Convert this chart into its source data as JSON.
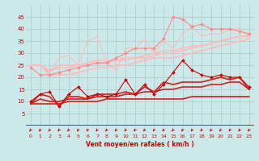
{
  "background_color": "#cce8e8",
  "grid_color": "#aacccc",
  "xlabel": "Vent moyen/en rafales ( km/h )",
  "xlabel_color": "#cc0000",
  "tick_color": "#cc0000",
  "xlim": [
    -0.5,
    23.5
  ],
  "ylim": [
    0,
    50
  ],
  "yticks": [
    5,
    10,
    15,
    20,
    25,
    30,
    35,
    40,
    45
  ],
  "xticks": [
    0,
    1,
    2,
    3,
    4,
    5,
    6,
    7,
    8,
    9,
    10,
    11,
    12,
    13,
    14,
    15,
    16,
    17,
    18,
    19,
    20,
    21,
    22,
    23
  ],
  "lines": [
    {
      "x": [
        0,
        1,
        2,
        3,
        4,
        5,
        6,
        7,
        8,
        9,
        10,
        11,
        12,
        13,
        14,
        15,
        16,
        17,
        18,
        19,
        20,
        21,
        22,
        23
      ],
      "y": [
        25,
        25,
        22,
        28,
        29,
        25,
        35,
        37,
        26,
        23,
        32,
        32,
        36,
        30,
        35,
        32,
        38,
        41,
        37,
        38,
        38,
        40,
        40,
        37
      ],
      "color": "#ffbbbb",
      "lw": 0.8,
      "marker": null,
      "ms": 0,
      "zorder": 2
    },
    {
      "x": [
        0,
        1,
        2,
        3,
        4,
        5,
        6,
        7,
        8,
        9,
        10,
        11,
        12,
        13,
        14,
        15,
        16,
        17,
        18,
        19,
        20,
        21,
        22,
        23
      ],
      "y": [
        25,
        25,
        22,
        25,
        25,
        25,
        26,
        27,
        27,
        27,
        28,
        28,
        29,
        30,
        31,
        31,
        32,
        33,
        33,
        34,
        35,
        36,
        37,
        37
      ],
      "color": "#ffbbbb",
      "lw": 1.2,
      "marker": null,
      "ms": 0,
      "zorder": 2
    },
    {
      "x": [
        0,
        1,
        2,
        3,
        4,
        5,
        6,
        7,
        8,
        9,
        10,
        11,
        12,
        13,
        14,
        15,
        16,
        17,
        18,
        19,
        20,
        21,
        22,
        23
      ],
      "y": [
        25,
        25,
        23,
        24,
        24,
        25,
        25,
        26,
        26,
        27,
        27,
        28,
        28,
        29,
        30,
        30,
        31,
        32,
        33,
        34,
        35,
        36,
        37,
        37
      ],
      "color": "#ffbbbb",
      "lw": 1.2,
      "marker": null,
      "ms": 0,
      "zorder": 2
    },
    {
      "x": [
        0,
        1,
        2,
        3,
        4,
        5,
        6,
        7,
        8,
        9,
        10,
        11,
        12,
        13,
        14,
        15,
        16,
        17,
        18,
        19,
        20,
        21,
        22,
        23
      ],
      "y": [
        25,
        25,
        21,
        21,
        21,
        22,
        23,
        24,
        24,
        25,
        25,
        26,
        27,
        28,
        28,
        28,
        29,
        30,
        31,
        32,
        33,
        34,
        35,
        36
      ],
      "color": "#ffbbbb",
      "lw": 1.2,
      "marker": null,
      "ms": 0,
      "zorder": 2
    },
    {
      "x": [
        0,
        1,
        2,
        3,
        4,
        5,
        6,
        7,
        8,
        9,
        10,
        11,
        12,
        13,
        14,
        15,
        16,
        17,
        18,
        19,
        20,
        21,
        22,
        23
      ],
      "y": [
        24,
        21,
        21,
        22,
        23,
        24,
        25,
        26,
        26,
        28,
        30,
        32,
        32,
        32,
        36,
        45,
        44,
        41,
        42,
        40,
        40,
        40,
        39,
        38
      ],
      "color": "#ff8888",
      "lw": 0.8,
      "marker": "D",
      "ms": 2,
      "zorder": 3
    },
    {
      "x": [
        0,
        1,
        2,
        3,
        4,
        5,
        6,
        7,
        8,
        9,
        10,
        11,
        12,
        13,
        14,
        15,
        16,
        17,
        18,
        19,
        20,
        21,
        22,
        23
      ],
      "y": [
        10,
        13,
        14,
        8,
        13,
        16,
        12,
        13,
        12,
        13,
        19,
        13,
        17,
        13,
        17,
        22,
        27,
        23,
        21,
        20,
        21,
        20,
        20,
        16
      ],
      "color": "#cc0000",
      "lw": 0.8,
      "marker": "D",
      "ms": 2,
      "zorder": 3
    },
    {
      "x": [
        0,
        1,
        2,
        3,
        4,
        5,
        6,
        7,
        8,
        9,
        10,
        11,
        12,
        13,
        14,
        15,
        16,
        17,
        18,
        19,
        20,
        21,
        22,
        23
      ],
      "y": [
        9,
        13,
        12,
        8,
        12,
        12,
        11,
        13,
        13,
        13,
        14,
        13,
        16,
        14,
        18,
        17,
        18,
        18,
        18,
        19,
        20,
        19,
        20,
        15
      ],
      "color": "#cc2222",
      "lw": 1.2,
      "marker": null,
      "ms": 0,
      "zorder": 2
    },
    {
      "x": [
        0,
        1,
        2,
        3,
        4,
        5,
        6,
        7,
        8,
        9,
        10,
        11,
        12,
        13,
        14,
        15,
        16,
        17,
        18,
        19,
        20,
        21,
        22,
        23
      ],
      "y": [
        9,
        11,
        10,
        10,
        11,
        11,
        11,
        12,
        12,
        12,
        13,
        13,
        14,
        14,
        15,
        15,
        16,
        16,
        16,
        17,
        17,
        18,
        18,
        15
      ],
      "color": "#cc2222",
      "lw": 1.2,
      "marker": null,
      "ms": 0,
      "zorder": 2
    },
    {
      "x": [
        0,
        1,
        2,
        3,
        4,
        5,
        6,
        7,
        8,
        9,
        10,
        11,
        12,
        13,
        14,
        15,
        16,
        17,
        18,
        19,
        20,
        21,
        22,
        23
      ],
      "y": [
        9,
        9,
        9,
        9,
        10,
        10,
        10,
        10,
        11,
        11,
        11,
        11,
        11,
        11,
        11,
        11,
        11,
        12,
        12,
        12,
        12,
        12,
        12,
        12
      ],
      "color": "#cc2222",
      "lw": 1.2,
      "marker": null,
      "ms": 0,
      "zorder": 2
    }
  ]
}
